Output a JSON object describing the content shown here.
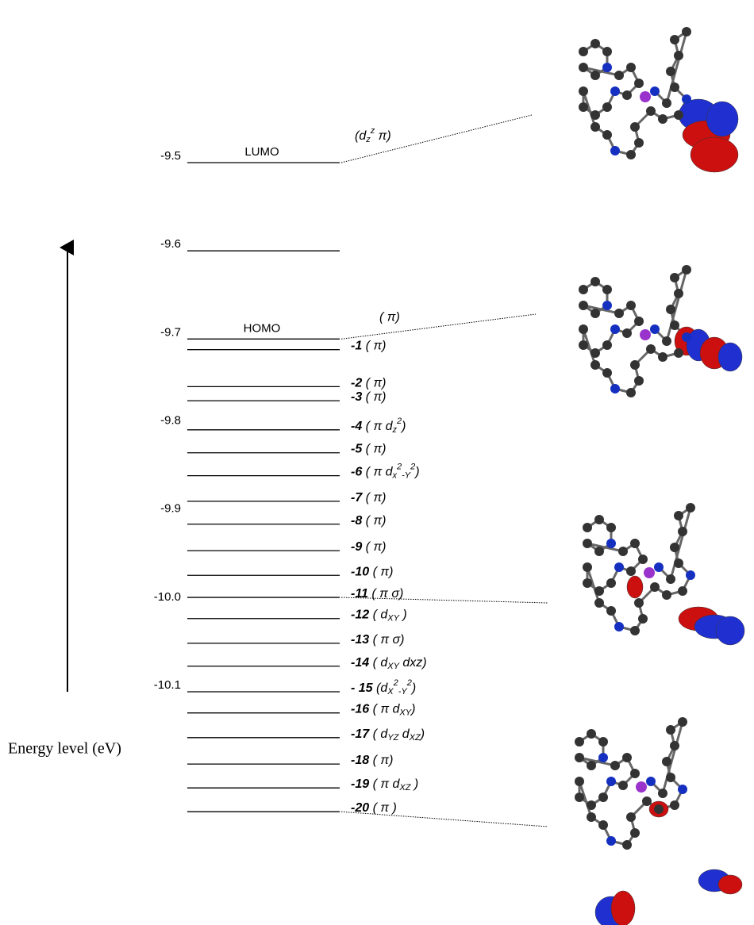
{
  "axis": {
    "label": "Energy level (eV)",
    "ticks": [
      -9.5,
      -9.6,
      -9.7,
      -9.8,
      -9.9,
      {
        "value": -10.0,
        "label": "-10.0"
      },
      -10.1
    ]
  },
  "levels": [
    {
      "energy": -9.5,
      "name": "LUMO",
      "orbital": [
        {
          "t": "(d"
        },
        {
          "sub": "z"
        },
        {
          "sup": "z"
        },
        {
          "t": " π)"
        }
      ]
    },
    {
      "energy": -9.6
    },
    {
      "energy": -9.7,
      "name": "HOMO",
      "orbital": [
        {
          "t": "( π)"
        }
      ]
    },
    {
      "energy": -9.712,
      "number": "-1",
      "orbital": [
        {
          "t": " ( π)"
        }
      ]
    },
    {
      "energy": -9.754,
      "number": "-2",
      "orbital": [
        {
          "t": " ( π)"
        }
      ]
    },
    {
      "energy": -9.77,
      "number": "-3",
      "orbital": [
        {
          "t": " ( π)"
        }
      ]
    },
    {
      "energy": -9.803,
      "number": "-4",
      "orbital": [
        {
          "t": " ( π d"
        },
        {
          "sub": "z"
        },
        {
          "sup": "2"
        },
        {
          "t": ")"
        }
      ]
    },
    {
      "energy": -9.829,
      "number": "-5",
      "orbital": [
        {
          "t": " ( π)"
        }
      ]
    },
    {
      "energy": -9.855,
      "number": "-6",
      "orbital": [
        {
          "t": " ( π d"
        },
        {
          "sub": "x"
        },
        {
          "sup": "2"
        },
        {
          "sub": "-Y"
        },
        {
          "sup": "2"
        },
        {
          "t": ")"
        }
      ]
    },
    {
      "energy": -9.884,
      "number": "-7",
      "orbital": [
        {
          "t": " ( π)"
        }
      ]
    },
    {
      "energy": -9.91,
      "number": "-8",
      "orbital": [
        {
          "t": " ( π)"
        }
      ]
    },
    {
      "energy": -9.94,
      "number": "-9",
      "orbital": [
        {
          "t": " ( π)"
        }
      ]
    },
    {
      "energy": -9.968,
      "number": "-10",
      "orbital": [
        {
          "t": "  ( π)"
        }
      ]
    },
    {
      "energy": -9.993,
      "number": "-11",
      "orbital": [
        {
          "t": " ( π σ)"
        }
      ]
    },
    {
      "energy": -10.017,
      "number": "-12",
      "orbital": [
        {
          "t": " ( d"
        },
        {
          "sub": "XY"
        },
        {
          "t": " )"
        }
      ]
    },
    {
      "energy": -10.045,
      "number": "-13",
      "orbital": [
        {
          "t": " ( π σ)"
        }
      ]
    },
    {
      "energy": -10.071,
      "number": "-14",
      "orbital": [
        {
          "t": " ( d"
        },
        {
          "sub": "XY"
        },
        {
          "t": " dxz)"
        }
      ]
    },
    {
      "energy": -10.1,
      "number": "- 15",
      "orbital": [
        {
          "t": " (d"
        },
        {
          "sub": "X"
        },
        {
          "sup": "2"
        },
        {
          "sub": "-Y"
        },
        {
          "sup": "2"
        },
        {
          "t": ")"
        }
      ]
    },
    {
      "energy": -10.124,
      "number": "-16",
      "orbital": [
        {
          "t": " ( π  d"
        },
        {
          "sub": "XY"
        },
        {
          "t": ")"
        }
      ]
    },
    {
      "energy": -10.152,
      "number": "-17",
      "orbital": [
        {
          "t": " ( d"
        },
        {
          "sub": "YZ"
        },
        {
          "t": " d"
        },
        {
          "sub": "XZ"
        },
        {
          "t": ")"
        }
      ]
    },
    {
      "energy": -10.182,
      "number": "-18",
      "orbital": [
        {
          "t": " ( π)"
        }
      ]
    },
    {
      "energy": -10.209,
      "number": "-19",
      "orbital": [
        {
          "t": " ( π  d"
        },
        {
          "sub": "XZ"
        },
        {
          "t": " )"
        }
      ]
    },
    {
      "energy": -10.236,
      "number": "-20",
      "orbital": [
        {
          "t": " ( π )"
        }
      ]
    }
  ]
}
